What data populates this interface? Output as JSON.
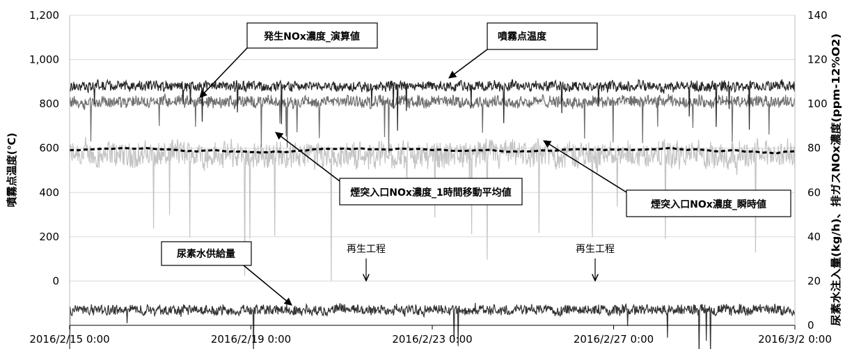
{
  "chart_data": {
    "type": "line",
    "xlabel": "",
    "x_ticks": [
      "2016/2/15 0:00",
      "2016/2/19 0:00",
      "2016/2/23 0:00",
      "2016/2/27 0:00",
      "2016/3/2 0:00"
    ],
    "xlim": [
      "2016/2/15 0:00",
      "2016/3/2 0:00"
    ],
    "left_axis": {
      "label": "噴霧点温度(℃)",
      "ylim": [
        -200,
        1200
      ],
      "ticks": [
        "1,200",
        "1,000",
        "800",
        "600",
        "400",
        "200",
        "0"
      ]
    },
    "right_axis": {
      "label": "尿素水注入量(kg/h)、排ガスNOx濃度(ppm-12%O2)",
      "ylim": [
        0,
        140
      ],
      "ticks": [
        "140",
        "120",
        "100",
        "80",
        "60",
        "40",
        "20",
        "0"
      ]
    },
    "grid": "horizontal",
    "series": [
      {
        "name": "噴霧点温度",
        "axis": "left",
        "color": "#262626",
        "style": "solid",
        "level": 880,
        "noise": 35
      },
      {
        "name": "発生NOx濃度_演算値",
        "axis": "left",
        "color": "#6e6e6e",
        "style": "solid",
        "level": 810,
        "noise": 40
      },
      {
        "name": "煙突入口NOx濃度_瞬時値",
        "axis": "right",
        "color": "#c4c4c4",
        "style": "solid",
        "level": 77,
        "noise": 9
      },
      {
        "name": "煙突入口NOx濃度_1時間移動平均値",
        "axis": "right",
        "color": "#000000",
        "style": "dashed",
        "level": 79,
        "noise": 1.5
      },
      {
        "name": "尿素水供給量",
        "axis": "right",
        "color": "#333333",
        "style": "solid",
        "level": 7,
        "noise": 3.5
      }
    ],
    "annotations": [
      {
        "text": "発生NOx濃度_演算値",
        "boxed": true
      },
      {
        "text": "噴霧点温度",
        "boxed": true
      },
      {
        "text": "煙突入口NOx濃度_1時間移動平均値",
        "boxed": true
      },
      {
        "text": "煙突入口NOx濃度_瞬時値",
        "boxed": true
      },
      {
        "text": "尿素水供給量",
        "boxed": true
      },
      {
        "text": "再生工程",
        "boxed": false
      },
      {
        "text": "再生工程",
        "boxed": false
      }
    ]
  }
}
